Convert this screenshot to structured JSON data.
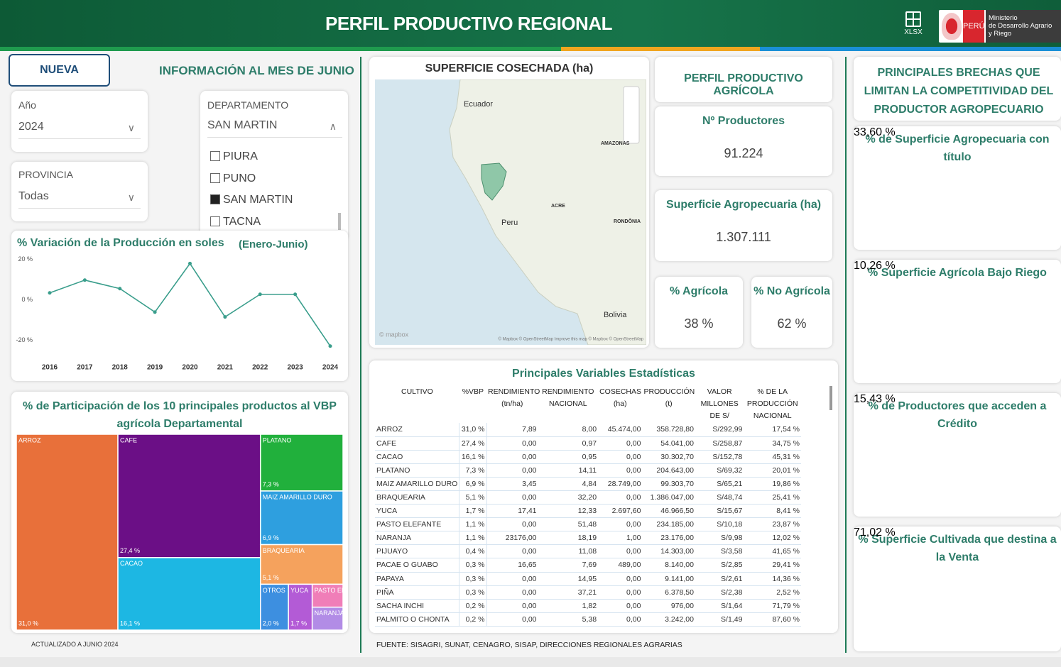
{
  "header": {
    "title": "PERFIL PRODUCTIVO REGIONAL",
    "export": "XLSX",
    "country": "PERÚ",
    "ministry": [
      "Ministerio",
      "de Desarrollo Agrario",
      "y Riego"
    ]
  },
  "filters": {
    "new_search": "NUEVA BÚSQUEDA",
    "info": "INFORMACIÓN AL MES DE JUNIO",
    "year": {
      "label": "Año",
      "value": "2024"
    },
    "province": {
      "label": "PROVINCIA",
      "value": "Todas"
    },
    "department": {
      "label": "DEPARTAMENTO",
      "value": "SAN MARTIN",
      "options": [
        {
          "label": "PIURA",
          "checked": false
        },
        {
          "label": "PUNO",
          "checked": false
        },
        {
          "label": "SAN MARTIN",
          "checked": true
        },
        {
          "label": "TACNA",
          "checked": false
        }
      ]
    }
  },
  "variation_chart": {
    "type": "line",
    "title": "% Variación de la Producción en soles",
    "subtitle": "(Enero-Junio)",
    "categories": [
      "2016",
      "2017",
      "2018",
      "2019",
      "2020",
      "2021",
      "2022",
      "2023",
      "2024"
    ],
    "values": [
      3.5,
      9.8,
      5.6,
      -6,
      18,
      -8.4,
      2.8,
      2.8,
      -22.8
    ],
    "color": "#3a9e8c",
    "ylim": [
      -25,
      22
    ],
    "yticks": [
      {
        "value": 20,
        "label": "20 %"
      },
      {
        "value": 0,
        "label": "0 %"
      },
      {
        "value": -20,
        "label": "-20 %"
      }
    ]
  },
  "share_chart": {
    "type": "treemap",
    "title": "% de Participación de los 10 principales productos al VBP agrícola Departamental",
    "items": [
      {
        "name": "ARROZ",
        "value": 31.0,
        "value_label": "31,0 %",
        "color": "#e8703a"
      },
      {
        "name": "CAFE",
        "value": 27.4,
        "value_label": "27,4 %",
        "color": "#6b0f86"
      },
      {
        "name": "CACAO",
        "value": 16.1,
        "value_label": "16,1 %",
        "color": "#1db7e3"
      },
      {
        "name": "PLATANO",
        "value": 7.3,
        "value_label": "7,3 %",
        "color": "#21b03c"
      },
      {
        "name": "MAIZ AMARILLO DURO",
        "value": 6.9,
        "value_label": "6,9 %",
        "color": "#2e9fdf"
      },
      {
        "name": "BRAQUEARIA",
        "value": 5.1,
        "value_label": "5,1 %",
        "color": "#f5a25d"
      },
      {
        "name": "OTROS",
        "value": 2.0,
        "value_label": "2,0 %",
        "color": "#3d8fe0"
      },
      {
        "name": "YUCA",
        "value": 1.7,
        "value_label": "1,7 %",
        "color": "#b35bd6"
      },
      {
        "name": "PASTO ELE...",
        "value": 1.1,
        "color": "#f07eb8"
      },
      {
        "name": "NARANJA",
        "value": 1.1,
        "color": "#b28ce6"
      }
    ]
  },
  "updated": "ACTUALIZADO A JUNIO 2024",
  "map": {
    "title": "SUPERFICIE COSECHADA (ha)",
    "labels": [
      "Ecuador",
      "Peru",
      "Bolivia",
      "ACRE",
      "AMAZONAS",
      "RONDÔNIA"
    ],
    "attribution": "© Mapbox © OpenStreetMap Improve this map © Mapbox © OpenStreetMap",
    "logo": "© mapbox"
  },
  "profile": {
    "title": "PERFIL PRODUCTIVO AGRÍCOLA",
    "producers": {
      "label": "Nº Productores",
      "value": "91.224"
    },
    "surface": {
      "label": "Superficie Agropecuaria (ha)",
      "value": "1.307.111"
    },
    "agricultural": {
      "label": "% Agrícola",
      "value": "38 %"
    },
    "non_agricultural": {
      "label": "% No Agrícola",
      "value": "62 %"
    }
  },
  "table": {
    "title": "Principales Variables Estadísticas",
    "columns": [
      "CULTIVO",
      "%VBP",
      "RENDIMIENTO (tn/ha)",
      "RENDIMIENTO NACIONAL",
      "COSECHAS (ha)",
      "PRODUCCIÓN (t)",
      "VALOR MILLONES DE S/",
      "% DE LA PRODUCCIÓN NACIONAL"
    ],
    "rows": [
      [
        "ARROZ",
        "31,0 %",
        "7,89",
        "8,00",
        "45.474,00",
        "358.728,80",
        "S/292,99",
        "17,54 %"
      ],
      [
        "CAFE",
        "27,4 %",
        "0,00",
        "0,97",
        "0,00",
        "54.041,00",
        "S/258,87",
        "34,75 %"
      ],
      [
        "CACAO",
        "16,1 %",
        "0,00",
        "0,95",
        "0,00",
        "30.302,70",
        "S/152,78",
        "45,31 %"
      ],
      [
        "PLATANO",
        "7,3 %",
        "0,00",
        "14,11",
        "0,00",
        "204.643,00",
        "S/69,32",
        "20,01 %"
      ],
      [
        "MAIZ AMARILLO DURO",
        "6,9 %",
        "3,45",
        "4,84",
        "28.749,00",
        "99.303,70",
        "S/65,21",
        "19,86 %"
      ],
      [
        "BRAQUEARIA",
        "5,1 %",
        "0,00",
        "32,20",
        "0,00",
        "1.386.047,00",
        "S/48,74",
        "25,41 %"
      ],
      [
        "YUCA",
        "1,7 %",
        "17,41",
        "12,33",
        "2.697,60",
        "46.966,50",
        "S/15,67",
        "8,41 %"
      ],
      [
        "PASTO ELEFANTE",
        "1,1 %",
        "0,00",
        "51,48",
        "0,00",
        "234.185,00",
        "S/10,18",
        "23,87 %"
      ],
      [
        "NARANJA",
        "1,1 %",
        "23176,00",
        "18,19",
        "1,00",
        "23.176,00",
        "S/9,98",
        "12,02 %"
      ],
      [
        "PIJUAYO",
        "0,4 %",
        "0,00",
        "11,08",
        "0,00",
        "14.303,00",
        "S/3,58",
        "41,65 %"
      ],
      [
        "PACAE O GUABO",
        "0,3 %",
        "16,65",
        "7,69",
        "489,00",
        "8.140,00",
        "S/2,85",
        "29,41 %"
      ],
      [
        "PAPAYA",
        "0,3 %",
        "0,00",
        "14,95",
        "0,00",
        "9.141,00",
        "S/2,61",
        "14,36 %"
      ],
      [
        "PIÑA",
        "0,3 %",
        "0,00",
        "37,21",
        "0,00",
        "6.378,50",
        "S/2,38",
        "2,52 %"
      ],
      [
        "SACHA INCHI",
        "0,2 %",
        "0,00",
        "1,82",
        "0,00",
        "976,00",
        "S/1,64",
        "71,79 %"
      ],
      [
        "PALMITO O CHONTA",
        "0,2 %",
        "0,00",
        "5,38",
        "0,00",
        "3.242,00",
        "S/1,49",
        "87,60 %"
      ]
    ],
    "source": "FUENTE: SISAGRI, SUNAT, CENAGRO, SISAP, DIRECCIONES REGIONALES AGRARIAS"
  },
  "gaps": {
    "title": "PRINCIPALES BRECHAS QUE LIMITAN LA COMPETITIVIDAD DEL PRODUCTOR AGROPECUARIO",
    "type": "gauge",
    "min": 0,
    "max": 100,
    "color": "#1f6fc5",
    "gauges": [
      {
        "title": "% de Superficie Agropecuaria con título",
        "value": 33.6,
        "value_label": "33,60 %"
      },
      {
        "title": "% Superficie Agrícola Bajo Riego",
        "value": 10.26,
        "value_label": "10,26 %"
      },
      {
        "title": "% de Productores que acceden a Crédito",
        "value": 15.43,
        "value_label": "15,43 %"
      },
      {
        "title": "% Superficie Cultivada que destina a la Venta",
        "value": 71.02,
        "value_label": "71,02 %"
      }
    ]
  }
}
